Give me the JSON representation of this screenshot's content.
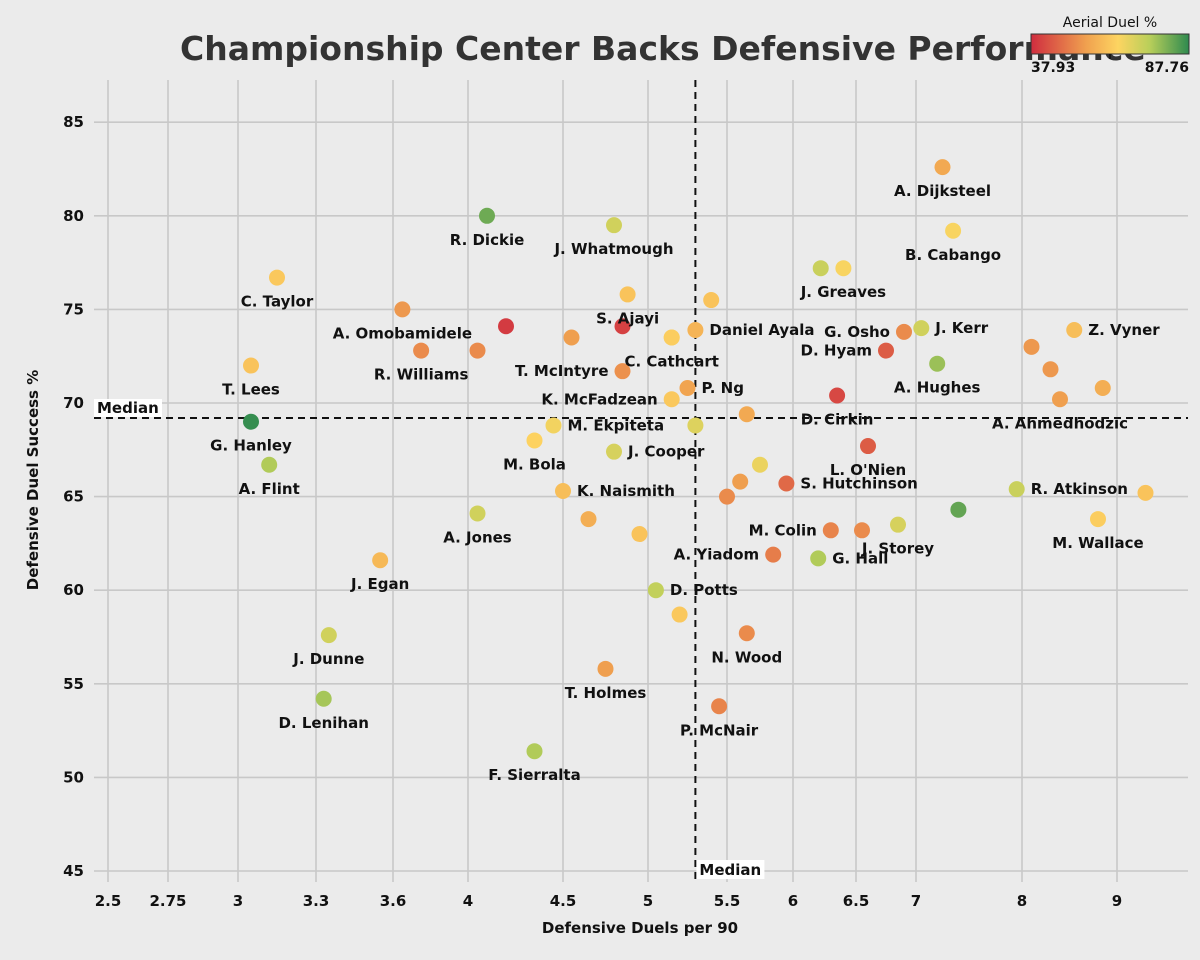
{
  "chart_data": {
    "type": "scatter",
    "title": "Championship Center Backs Defensive Performance",
    "xlabel": "Defensive Duels per 90",
    "ylabel": "Defensive Duel Success %",
    "x_ticks": [
      "2.5",
      "2.75",
      "3",
      "3.3",
      "3.6",
      "4",
      "4.5",
      "5",
      "5.5",
      "6",
      "6.5",
      "7",
      "8",
      "9"
    ],
    "y_ticks": [
      45,
      50,
      55,
      60,
      65,
      70,
      75,
      80,
      85
    ],
    "ylim": [
      44.5,
      87.5
    ],
    "median_x": 5.3,
    "median_y": 69.2,
    "median_label": "Median",
    "colorbar": {
      "label": "Aerial Duel %",
      "min": 37.93,
      "max": 87.76,
      "min_label": "37.93",
      "max_label": "87.76",
      "colors": [
        "#cf2d3f",
        "#f0a14f",
        "#fdd461",
        "#b9cf5a",
        "#2e8a4f"
      ]
    },
    "points": [
      {
        "name": "A. Dijksteel",
        "x": 7.25,
        "y": 82.6,
        "c": 57
      },
      {
        "name": "B. Cabango",
        "x": 7.35,
        "y": 79.2,
        "c": 66
      },
      {
        "name": "R. Dickie",
        "x": 4.1,
        "y": 80.0,
        "c": 82
      },
      {
        "name": "J. Whatmough",
        "x": 4.8,
        "y": 79.5,
        "c": 72
      },
      {
        "name": "C. Taylor",
        "x": 3.15,
        "y": 76.7,
        "c": 63
      },
      {
        "name": "J. Greaves",
        "x": 6.4,
        "y": 77.2,
        "c": 66
      },
      {
        "name": "",
        "x": 6.22,
        "y": 77.2,
        "c": 73
      },
      {
        "name": "S. Ajayi",
        "x": 4.88,
        "y": 75.8,
        "c": 62
      },
      {
        "name": "",
        "x": 5.4,
        "y": 75.5,
        "c": 62
      },
      {
        "name": "A. Omobamidele",
        "x": 3.65,
        "y": 75.0,
        "c": 54
      },
      {
        "name": "",
        "x": 4.2,
        "y": 74.1,
        "c": 40
      },
      {
        "name": "",
        "x": 4.85,
        "y": 74.1,
        "c": 41
      },
      {
        "name": "Daniel Ayala",
        "x": 5.3,
        "y": 73.9,
        "c": 59
      },
      {
        "name": "G. Osho",
        "x": 6.9,
        "y": 73.8,
        "c": 52
      },
      {
        "name": "J. Kerr",
        "x": 7.05,
        "y": 74.0,
        "c": 72
      },
      {
        "name": "Z. Vyner",
        "x": 8.55,
        "y": 73.9,
        "c": 61
      },
      {
        "name": "",
        "x": 4.55,
        "y": 73.5,
        "c": 55
      },
      {
        "name": "",
        "x": 5.15,
        "y": 73.5,
        "c": 65
      },
      {
        "name": "C. Cathcart",
        "x": 5.15,
        "y": 73.5,
        "c": 64
      },
      {
        "name": "",
        "x": 8.1,
        "y": 73.0,
        "c": 54
      },
      {
        "name": "R. Williams",
        "x": 3.75,
        "y": 72.8,
        "c": 52
      },
      {
        "name": "",
        "x": 4.05,
        "y": 72.8,
        "c": 52
      },
      {
        "name": "D. Hyam",
        "x": 6.75,
        "y": 72.8,
        "c": 45
      },
      {
        "name": "A. Hughes",
        "x": 7.2,
        "y": 72.1,
        "c": 78
      },
      {
        "name": "T. Lees",
        "x": 3.05,
        "y": 72.0,
        "c": 62
      },
      {
        "name": "T. McIntyre",
        "x": 4.85,
        "y": 71.7,
        "c": 53
      },
      {
        "name": "",
        "x": 8.3,
        "y": 71.8,
        "c": 54
      },
      {
        "name": "P. Ng",
        "x": 5.25,
        "y": 70.8,
        "c": 56
      },
      {
        "name": "",
        "x": 8.85,
        "y": 70.8,
        "c": 58
      },
      {
        "name": "K. McFadzean",
        "x": 5.15,
        "y": 70.2,
        "c": 63
      },
      {
        "name": "D. Cirkin",
        "x": 6.35,
        "y": 70.4,
        "c": 42
      },
      {
        "name": "A. Ahmedhodzic",
        "x": 8.4,
        "y": 70.2,
        "c": 55
      },
      {
        "name": "",
        "x": 5.65,
        "y": 69.4,
        "c": 57
      },
      {
        "name": "G. Hanley",
        "x": 3.05,
        "y": 69.0,
        "c": 87
      },
      {
        "name": "M. Ekpiteta",
        "x": 4.45,
        "y": 68.8,
        "c": 67
      },
      {
        "name": "",
        "x": 5.3,
        "y": 68.8,
        "c": 70
      },
      {
        "name": "M. Bola",
        "x": 4.35,
        "y": 68.0,
        "c": 65
      },
      {
        "name": "L. O'Nien",
        "x": 6.6,
        "y": 67.7,
        "c": 45
      },
      {
        "name": "J. Cooper",
        "x": 4.8,
        "y": 67.4,
        "c": 71
      },
      {
        "name": "A. Flint",
        "x": 3.12,
        "y": 66.7,
        "c": 76
      },
      {
        "name": "",
        "x": 5.75,
        "y": 66.7,
        "c": 68
      },
      {
        "name": "",
        "x": 5.6,
        "y": 65.8,
        "c": 55
      },
      {
        "name": "S. Hutchinson",
        "x": 5.95,
        "y": 65.7,
        "c": 47
      },
      {
        "name": "R. Atkinson",
        "x": 7.95,
        "y": 65.4,
        "c": 73
      },
      {
        "name": "K. Naismith",
        "x": 4.5,
        "y": 65.3,
        "c": 61
      },
      {
        "name": "",
        "x": 5.5,
        "y": 65.0,
        "c": 52
      },
      {
        "name": "",
        "x": 9.3,
        "y": 65.2,
        "c": 62
      },
      {
        "name": "",
        "x": 7.4,
        "y": 64.3,
        "c": 83
      },
      {
        "name": "A. Jones",
        "x": 4.05,
        "y": 64.1,
        "c": 72
      },
      {
        "name": "",
        "x": 4.65,
        "y": 63.8,
        "c": 58
      },
      {
        "name": "M. Wallace",
        "x": 8.8,
        "y": 63.8,
        "c": 64
      },
      {
        "name": "J. Storey",
        "x": 6.85,
        "y": 63.5,
        "c": 71
      },
      {
        "name": "M. Colin",
        "x": 6.3,
        "y": 63.2,
        "c": 51
      },
      {
        "name": "",
        "x": 6.55,
        "y": 63.2,
        "c": 52
      },
      {
        "name": "",
        "x": 4.95,
        "y": 63.0,
        "c": 62
      },
      {
        "name": "A. Yiadom",
        "x": 5.85,
        "y": 61.9,
        "c": 50
      },
      {
        "name": "G. Hall",
        "x": 6.2,
        "y": 61.7,
        "c": 76
      },
      {
        "name": "J. Egan",
        "x": 3.55,
        "y": 61.6,
        "c": 60
      },
      {
        "name": "D. Potts",
        "x": 5.05,
        "y": 60.0,
        "c": 74
      },
      {
        "name": "",
        "x": 5.2,
        "y": 58.7,
        "c": 63
      },
      {
        "name": "N. Wood",
        "x": 5.65,
        "y": 57.7,
        "c": 52
      },
      {
        "name": "J. Dunne",
        "x": 3.35,
        "y": 57.6,
        "c": 72
      },
      {
        "name": "T. Holmes",
        "x": 4.75,
        "y": 55.8,
        "c": 55
      },
      {
        "name": "D. Lenihan",
        "x": 3.33,
        "y": 54.2,
        "c": 77
      },
      {
        "name": "P. McNair",
        "x": 5.45,
        "y": 53.8,
        "c": 51
      },
      {
        "name": "F. Sierralta",
        "x": 4.35,
        "y": 51.4,
        "c": 76
      }
    ]
  }
}
